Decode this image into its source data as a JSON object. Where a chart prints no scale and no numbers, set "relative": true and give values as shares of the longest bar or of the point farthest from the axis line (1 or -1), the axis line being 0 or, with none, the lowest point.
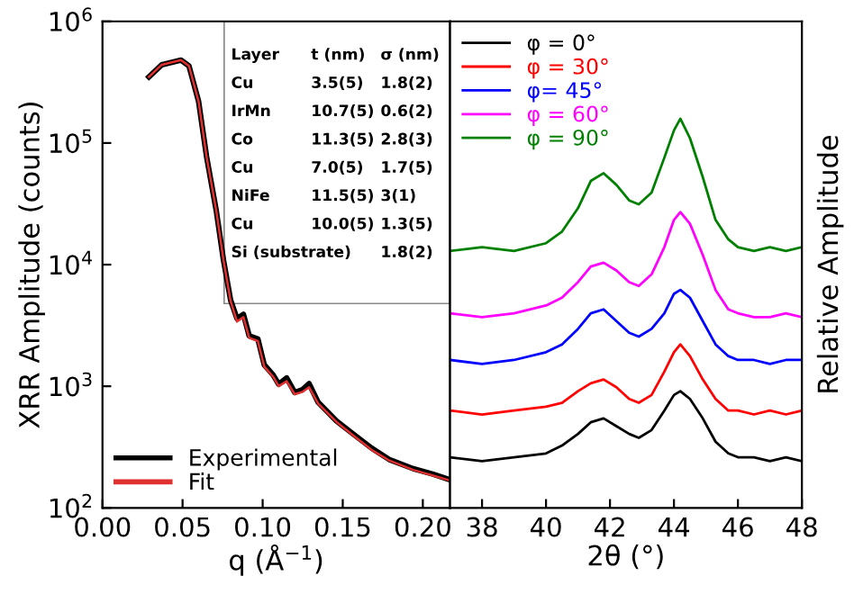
{
  "chart_data": [
    {
      "type": "line",
      "xlabel": "q (Å$^{−1}$)",
      "ylabel": "XRR Amplitude (counts)",
      "log": "y",
      "xlim": [
        0,
        0.217
      ],
      "ylim": [
        100,
        1000000
      ],
      "xticks": [
        {
          "value": 0,
          "label": "0.00"
        },
        {
          "value": 0.05,
          "label": "0.05"
        },
        {
          "value": 0.1,
          "label": "0.10"
        },
        {
          "value": 0.15,
          "label": "0.15"
        },
        {
          "value": 0.2,
          "label": "0.20"
        }
      ],
      "yticks": [
        {
          "value": 100,
          "label": "10$^{2}$"
        },
        {
          "value": 1000,
          "label": "10$^{3}$"
        },
        {
          "value": 10000,
          "label": "10$^{4}$"
        },
        {
          "value": 100000,
          "label": "10$^{5}$"
        },
        {
          "value": 1000000,
          "label": "10$^{6}$"
        }
      ],
      "legend": "bottom left",
      "grid": false,
      "x": [
        0.029,
        0.037,
        0.049,
        0.054,
        0.06,
        0.065,
        0.071,
        0.0755,
        0.08,
        0.084,
        0.088,
        0.0916,
        0.097,
        0.101,
        0.1065,
        0.11,
        0.115,
        0.12,
        0.125,
        0.129,
        0.1346,
        0.146,
        0.157,
        0.168,
        0.179,
        0.194,
        0.206,
        0.217
      ],
      "series": [
        {
          "name": "Experimental",
          "color": "#000000",
          "values": [
            350000,
            440000,
            480000,
            430000,
            220000,
            77000,
            28000,
            11000,
            5100,
            3600,
            3900,
            2600,
            2450,
            1500,
            1240,
            1040,
            1170,
            890,
            940,
            1050,
            740,
            520,
            400,
            310,
            250,
            210,
            190,
            170
          ]
        },
        {
          "name": "Fit",
          "color": "#e03030",
          "values": [
            350000,
            440000,
            480000,
            430000,
            220000,
            77000,
            28000,
            11000,
            5000,
            3400,
            3700,
            2500,
            2350,
            1450,
            1200,
            1000,
            1100,
            860,
            900,
            980,
            720,
            510,
            390,
            300,
            245,
            205,
            185,
            168
          ]
        }
      ],
      "annotations": [
        "Layer",
        "t (nm)",
        "σ (nm)",
        "Cu",
        "3.5(5)",
        "1.8(2)",
        "IrMn",
        "10.7(5)",
        "0.6(2)",
        "Co",
        "11.3(5)",
        "2.8(3)",
        "Cu",
        "7.0(5)",
        "1.7(5)",
        "NiFe",
        "11.5(5)",
        "3(1)",
        "Cu",
        "10.0(5)",
        "1.3(5)",
        "Si (substrate)",
        "1.8(2)"
      ]
    },
    {
      "type": "line",
      "xlabel": "2θ (°)",
      "ylabel": "Relative Amplitude",
      "relative": true,
      "tick_labels": "x",
      "xlim": [
        37,
        48
      ],
      "xticks": [
        38,
        40,
        42,
        44,
        46,
        48
      ],
      "legend": "top left",
      "grid": false,
      "x": [
        37,
        38,
        39,
        40,
        40.5,
        41,
        41.4,
        41.8,
        42.2,
        42.6,
        42.9,
        43.3,
        43.7,
        44.0,
        44.2,
        44.5,
        44.9,
        45.3,
        45.7,
        46,
        46.5,
        47,
        47.5,
        48
      ],
      "series": [
        {
          "name": "φ = 0°",
          "color": "#000000",
          "values": [
            0.13,
            0.12,
            0.13,
            0.14,
            0.16,
            0.19,
            0.22,
            0.23,
            0.21,
            0.19,
            0.18,
            0.2,
            0.25,
            0.29,
            0.3,
            0.28,
            0.23,
            0.17,
            0.14,
            0.13,
            0.13,
            0.12,
            0.13,
            0.12
          ]
        },
        {
          "name": "φ = 30°",
          "color": "#ff0000",
          "values": [
            0.25,
            0.24,
            0.25,
            0.26,
            0.27,
            0.3,
            0.32,
            0.33,
            0.31,
            0.28,
            0.27,
            0.29,
            0.35,
            0.4,
            0.42,
            0.39,
            0.33,
            0.28,
            0.25,
            0.25,
            0.24,
            0.25,
            0.24,
            0.25
          ]
        },
        {
          "name": "φ= 45°",
          "color": "#0000ff",
          "values": [
            0.38,
            0.37,
            0.38,
            0.4,
            0.42,
            0.46,
            0.5,
            0.51,
            0.48,
            0.45,
            0.44,
            0.46,
            0.5,
            0.55,
            0.56,
            0.54,
            0.48,
            0.42,
            0.39,
            0.38,
            0.38,
            0.37,
            0.38,
            0.38
          ]
        },
        {
          "name": "φ = 60°",
          "color": "#ff00ff",
          "values": [
            0.5,
            0.49,
            0.5,
            0.52,
            0.54,
            0.58,
            0.62,
            0.63,
            0.61,
            0.58,
            0.57,
            0.6,
            0.67,
            0.74,
            0.76,
            0.73,
            0.65,
            0.56,
            0.51,
            0.5,
            0.49,
            0.49,
            0.5,
            0.49
          ]
        },
        {
          "name": "φ = 90°",
          "color": "#008000",
          "values": [
            0.66,
            0.67,
            0.66,
            0.68,
            0.71,
            0.77,
            0.84,
            0.86,
            0.83,
            0.79,
            0.78,
            0.81,
            0.9,
            0.97,
            1.0,
            0.95,
            0.85,
            0.74,
            0.69,
            0.67,
            0.66,
            0.67,
            0.66,
            0.67
          ]
        }
      ]
    }
  ]
}
